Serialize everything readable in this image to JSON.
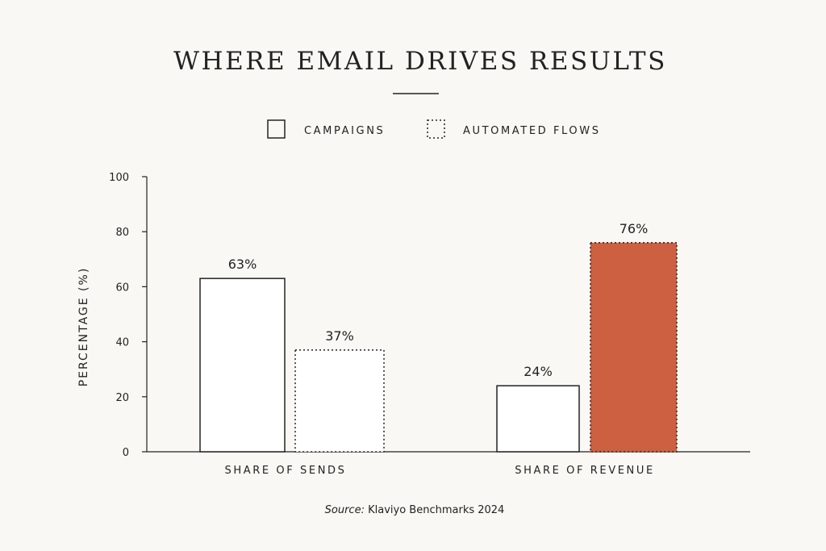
{
  "chart_data": {
    "type": "bar",
    "title": "WHERE EMAIL DRIVES RESULTS",
    "ylabel": "PERCENTAGE (%)",
    "xlabel": "",
    "ylim": [
      0,
      100
    ],
    "yticks": [
      0,
      20,
      40,
      60,
      80,
      100
    ],
    "grid": false,
    "legend_position": "top-center",
    "categories": [
      "SHARE OF SENDS",
      "SHARE OF REVENUE"
    ],
    "series": [
      {
        "name": "CAMPAIGNS",
        "values": [
          63,
          24
        ],
        "data_labels": [
          "63%",
          "24%"
        ],
        "style": "solid-outline"
      },
      {
        "name": "AUTOMATED FLOWS",
        "values": [
          37,
          76
        ],
        "data_labels": [
          "37%",
          "76%"
        ],
        "style": "dotted-outline"
      }
    ],
    "highlight": {
      "series": 1,
      "category": 1,
      "color": "#cd6040"
    },
    "source_label": "Source:",
    "source_text": "Klaviyo Benchmarks 2024"
  },
  "colors": {
    "background": "#faf8f4",
    "ink": "#222222",
    "highlight": "#cd6040"
  }
}
